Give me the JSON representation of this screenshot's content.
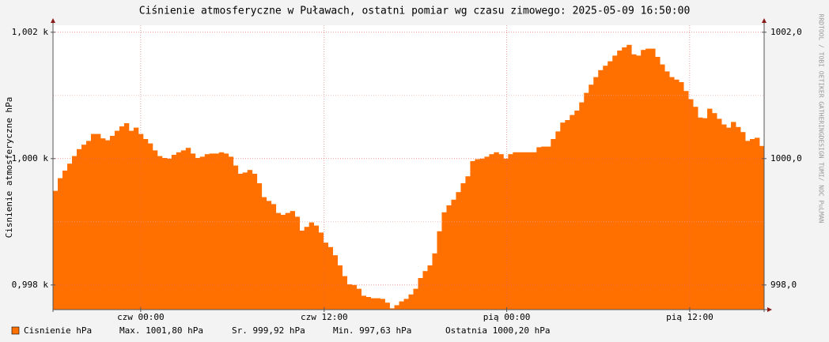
{
  "chart_data": {
    "type": "step-area",
    "title": "Ciśnienie atmosferyczne w Puławach, ostatni pomiar wg czasu zimowego: 2025-05-09 16:50:00",
    "y_label": "Cisnienie atmosferyczne hPa",
    "side_text": "RRDTOOL / TOBI OETIKER   GATHERINGDESIGN TUMI/ NOC PuLMAN",
    "series": [
      {
        "name": "Cisnienie hPa",
        "color": "#ff7000",
        "values": [
          999.49,
          999.69,
          999.81,
          999.92,
          1000.04,
          1000.15,
          1000.22,
          1000.28,
          1000.39,
          1000.39,
          1000.32,
          1000.29,
          1000.36,
          1000.44,
          1000.51,
          1000.56,
          1000.44,
          1000.49,
          1000.39,
          1000.31,
          1000.24,
          1000.13,
          1000.04,
          1000.01,
          1000.0,
          1000.06,
          1000.1,
          1000.13,
          1000.17,
          1000.08,
          1000.01,
          1000.03,
          1000.07,
          1000.08,
          1000.08,
          1000.1,
          1000.08,
          1000.03,
          999.89,
          999.76,
          999.78,
          999.82,
          999.76,
          999.61,
          999.39,
          999.33,
          999.28,
          999.14,
          999.11,
          999.14,
          999.17,
          999.08,
          998.86,
          998.92,
          998.99,
          998.94,
          998.83,
          998.67,
          998.6,
          998.47,
          998.31,
          998.14,
          998.01,
          998.0,
          997.94,
          997.83,
          997.81,
          997.79,
          997.79,
          997.78,
          997.72,
          997.63,
          997.68,
          997.74,
          997.78,
          997.85,
          997.94,
          998.11,
          998.22,
          998.31,
          998.5,
          998.85,
          999.15,
          999.26,
          999.35,
          999.47,
          999.61,
          999.72,
          999.96,
          999.99,
          1000.0,
          1000.03,
          1000.07,
          1000.1,
          1000.07,
          1000.0,
          1000.07,
          1000.1,
          1000.1,
          1000.1,
          1000.1,
          1000.1,
          1000.18,
          1000.19,
          1000.19,
          1000.31,
          1000.43,
          1000.57,
          1000.61,
          1000.69,
          1000.76,
          1000.89,
          1001.04,
          1001.17,
          1001.29,
          1001.4,
          1001.47,
          1001.54,
          1001.63,
          1001.71,
          1001.76,
          1001.8,
          1001.65,
          1001.63,
          1001.72,
          1001.74,
          1001.74,
          1001.61,
          1001.49,
          1001.38,
          1001.29,
          1001.25,
          1001.21,
          1001.07,
          1000.94,
          1000.82,
          1000.65,
          1000.64,
          1000.79,
          1000.72,
          1000.63,
          1000.54,
          1000.49,
          1000.58,
          1000.5,
          1000.42,
          1000.28,
          1000.31,
          1000.33,
          1000.2
        ]
      }
    ],
    "ylim": [
      997.61,
      1002.11
    ],
    "yticks": [
      {
        "value": 998,
        "label": "0,998 k"
      },
      {
        "value": 1000,
        "label": "1,000 k"
      },
      {
        "value": 1002,
        "label": "1,002 k"
      }
    ],
    "y2lim": [
      997.61,
      1002.11
    ],
    "y2ticks": [
      {
        "value": 998,
        "label": "998,0"
      },
      {
        "value": 1000,
        "label": "1000,0"
      },
      {
        "value": 1002,
        "label": "1002,0"
      }
    ],
    "minor_yticks": [
      999,
      1001
    ],
    "xticks": [
      {
        "value": 18.5,
        "label": "czw 00:00"
      },
      {
        "value": 57.2,
        "label": "czw 12:00"
      },
      {
        "value": 95.7,
        "label": "pią 00:00"
      },
      {
        "value": 134.3,
        "label": "pią 12:00"
      }
    ],
    "grid": true,
    "legend_stats": [
      "Max. 1001,80 hPa",
      "Sr. 999,92 hPa",
      "Min. 997,63 hPa",
      "Ostatnia 1000,20 hPa"
    ]
  }
}
